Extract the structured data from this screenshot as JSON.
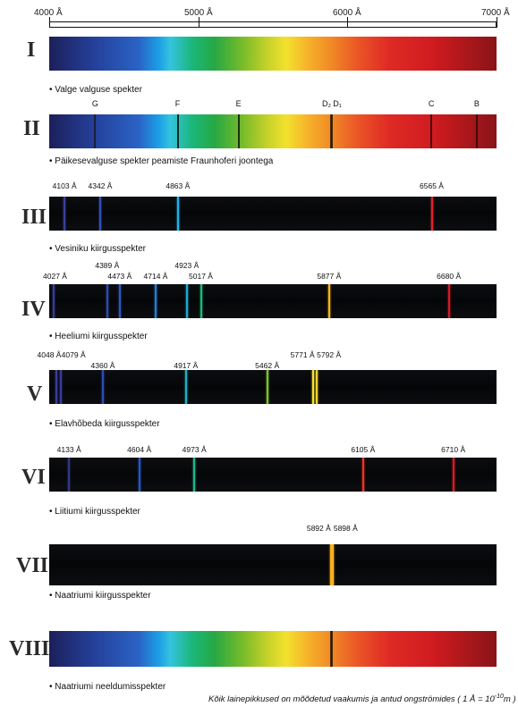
{
  "scale": {
    "labels": [
      "4000 Å",
      "5000 Å",
      "6000 Å",
      "7000 Å"
    ],
    "values": [
      4000,
      5000,
      6000,
      7000
    ],
    "min": 4000,
    "max": 7000
  },
  "colors": {
    "background": "#ffffff",
    "dark_band": "#07080a"
  },
  "panels": [
    {
      "numeral": "I",
      "caption": "• Valge valguse spekter",
      "type": "continuous",
      "lines": []
    },
    {
      "numeral": "II",
      "caption": "• Päikesevalguse spekter peamiste Fraunhoferi joontega",
      "type": "absorption",
      "lines": [
        {
          "label": "G",
          "wavelength": 4308,
          "color": "#1a1a2a"
        },
        {
          "label": "F",
          "wavelength": 4861,
          "color": "#0d0d0d"
        },
        {
          "label": "E",
          "wavelength": 5270,
          "color": "#0d1a0d"
        },
        {
          "label": "D₂",
          "wavelength": 5890,
          "color": "#2a1a00"
        },
        {
          "label": "D₁",
          "wavelength": 5896,
          "color": "#2a1a00"
        },
        {
          "label": "C",
          "wavelength": 6563,
          "color": "#300808"
        },
        {
          "label": "B",
          "wavelength": 6867,
          "color": "#300808"
        }
      ]
    },
    {
      "numeral": "III",
      "caption": "• Vesiniku kiirgusspekter",
      "type": "emission",
      "lines": [
        {
          "label": "4103 Å",
          "wavelength": 4103,
          "color": "#3b3f9c"
        },
        {
          "label": "4342 Å",
          "wavelength": 4342,
          "color": "#3350b8"
        },
        {
          "label": "4863 Å",
          "wavelength": 4863,
          "color": "#1ab6ec"
        },
        {
          "label": "6565 Å",
          "wavelength": 6565,
          "color": "#e0232a"
        }
      ]
    },
    {
      "numeral": "IV",
      "caption": "• Heeliumi kiirgusspekter",
      "type": "emission",
      "lines": [
        {
          "label": "4027 Å",
          "wavelength": 4027,
          "color": "#353c96"
        },
        {
          "label": "4389 Å",
          "wavelength": 4389,
          "color": "#2d4bb0"
        },
        {
          "label": "4473 Å",
          "wavelength": 4473,
          "color": "#2d56c0"
        },
        {
          "label": "4714 Å",
          "wavelength": 4714,
          "color": "#1c80d8"
        },
        {
          "label": "4923 Å",
          "wavelength": 4923,
          "color": "#1caad0"
        },
        {
          "label": "5017 Å",
          "wavelength": 5017,
          "color": "#1cb87a"
        },
        {
          "label": "5877 Å",
          "wavelength": 5877,
          "color": "#f5b41c"
        },
        {
          "label": "6680 Å",
          "wavelength": 6680,
          "color": "#d41a22"
        }
      ]
    },
    {
      "numeral": "V",
      "caption": "• Elavhõbeda kiirgusspekter",
      "type": "emission",
      "lines": [
        {
          "label": "4048 Å",
          "wavelength": 4048,
          "color": "#3a3c9a"
        },
        {
          "label": "4079 Å",
          "wavelength": 4079,
          "color": "#3a3c9a"
        },
        {
          "label": "4360 Å",
          "wavelength": 4360,
          "color": "#2d4cb4"
        },
        {
          "label": "4917 Å",
          "wavelength": 4917,
          "color": "#1ab0c8"
        },
        {
          "label": "5462 Å",
          "wavelength": 5462,
          "color": "#7cc22c"
        },
        {
          "label": "5771 Å",
          "wavelength": 5771,
          "color": "#f4e22e"
        },
        {
          "label": "5792 Å",
          "wavelength": 5792,
          "color": "#f6d12a"
        }
      ]
    },
    {
      "numeral": "VI",
      "caption": "• Liitiumi kiirgusspekter",
      "type": "emission",
      "lines": [
        {
          "label": "4133 Å",
          "wavelength": 4133,
          "color": "#33397e"
        },
        {
          "label": "4604 Å",
          "wavelength": 4604,
          "color": "#2457c6"
        },
        {
          "label": "4973 Å",
          "wavelength": 4973,
          "color": "#1cb78a"
        },
        {
          "label": "6105 Å",
          "wavelength": 6105,
          "color": "#ec3324"
        },
        {
          "label": "6710 Å",
          "wavelength": 6710,
          "color": "#d81a22"
        }
      ]
    },
    {
      "numeral": "VII",
      "caption": "• Naatriumi kiirgusspekter",
      "type": "emission",
      "lines": [
        {
          "label": "5892 Å",
          "wavelength": 5892,
          "color": "#f6a91e"
        },
        {
          "label": "5898 Å",
          "wavelength": 5898,
          "color": "#f6b21e"
        }
      ]
    },
    {
      "numeral": "VIII",
      "caption": "• Naatriumi neeldumisspekter",
      "type": "absorption",
      "lines": [
        {
          "label": "",
          "wavelength": 5890,
          "color": "#2a1a00"
        },
        {
          "label": "",
          "wavelength": 5896,
          "color": "#2a1a00"
        }
      ]
    }
  ],
  "footnote": {
    "text": "Kõik lainepikkused on mõõdetud vaakumis ja antud ongströmides ( 1 Å = 10",
    "exponent": "-10",
    "unit": "m )"
  }
}
